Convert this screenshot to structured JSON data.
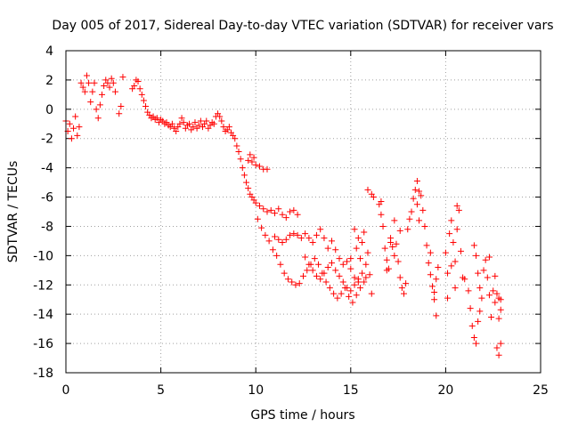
{
  "chart_data": {
    "type": "scatter",
    "title": "Day 005 of 2017, Sidereal Day-to-day VTEC variation (SDTVAR) for receiver vars",
    "xlabel": "GPS time / hours",
    "ylabel": "SDTVAR / TECUs",
    "xlim": [
      0,
      25
    ],
    "ylim": [
      -18,
      4
    ],
    "xticks": [
      0,
      5,
      10,
      15,
      20,
      25
    ],
    "xtick_labels": [
      "0",
      "5",
      "10",
      "15",
      "20",
      "25"
    ],
    "yticks": [
      4,
      2,
      0,
      -2,
      -4,
      -6,
      -8,
      -10,
      -12,
      -14,
      -16,
      -18
    ],
    "ytick_labels": [
      "4",
      "2",
      "0",
      "-2",
      "-4",
      "-6",
      "-8",
      "-10",
      "-12",
      "-14",
      "-16",
      "-18"
    ],
    "grid": true,
    "marker": "+",
    "color": "#ff0000",
    "series": [
      {
        "name": "SDTVAR",
        "points": [
          [
            0.0,
            -0.8
          ],
          [
            0.1,
            -1.5
          ],
          [
            0.2,
            -1.0
          ],
          [
            0.3,
            -2.0
          ],
          [
            0.4,
            -1.3
          ],
          [
            0.5,
            -0.5
          ],
          [
            0.6,
            -1.8
          ],
          [
            0.7,
            -1.2
          ],
          [
            0.8,
            1.8
          ],
          [
            0.9,
            1.5
          ],
          [
            1.0,
            1.2
          ],
          [
            1.1,
            2.3
          ],
          [
            1.2,
            1.8
          ],
          [
            1.3,
            0.5
          ],
          [
            1.4,
            1.2
          ],
          [
            1.5,
            1.8
          ],
          [
            1.6,
            0.0
          ],
          [
            1.7,
            -0.6
          ],
          [
            1.8,
            0.3
          ],
          [
            1.9,
            1.0
          ],
          [
            2.0,
            1.6
          ],
          [
            2.1,
            2.0
          ],
          [
            2.2,
            1.8
          ],
          [
            2.3,
            1.5
          ],
          [
            2.4,
            2.1
          ],
          [
            2.5,
            1.8
          ],
          [
            2.6,
            1.2
          ],
          [
            2.8,
            -0.3
          ],
          [
            2.9,
            0.2
          ],
          [
            3.0,
            2.2
          ],
          [
            3.5,
            1.4
          ],
          [
            3.6,
            1.6
          ],
          [
            3.7,
            2.0
          ],
          [
            3.8,
            1.9
          ],
          [
            3.9,
            1.4
          ],
          [
            4.0,
            1.0
          ],
          [
            4.1,
            0.6
          ],
          [
            4.2,
            0.2
          ],
          [
            4.3,
            -0.2
          ],
          [
            4.4,
            -0.4
          ],
          [
            4.5,
            -0.6
          ],
          [
            4.6,
            -0.5
          ],
          [
            4.7,
            -0.7
          ],
          [
            4.8,
            -0.6
          ],
          [
            4.9,
            -0.9
          ],
          [
            5.0,
            -0.7
          ],
          [
            5.1,
            -0.8
          ],
          [
            5.2,
            -1.0
          ],
          [
            5.3,
            -0.9
          ],
          [
            5.4,
            -1.1
          ],
          [
            5.5,
            -1.2
          ],
          [
            5.6,
            -1.0
          ],
          [
            5.7,
            -1.3
          ],
          [
            5.8,
            -1.5
          ],
          [
            5.9,
            -1.2
          ],
          [
            6.0,
            -1.0
          ],
          [
            6.1,
            -0.6
          ],
          [
            6.2,
            -0.9
          ],
          [
            6.3,
            -1.3
          ],
          [
            6.4,
            -1.1
          ],
          [
            6.5,
            -1.0
          ],
          [
            6.6,
            -1.4
          ],
          [
            6.7,
            -1.2
          ],
          [
            6.8,
            -0.9
          ],
          [
            6.9,
            -1.3
          ],
          [
            7.0,
            -1.1
          ],
          [
            7.1,
            -0.8
          ],
          [
            7.2,
            -1.2
          ],
          [
            7.3,
            -1.0
          ],
          [
            7.4,
            -0.8
          ],
          [
            7.5,
            -1.3
          ],
          [
            7.6,
            -1.1
          ],
          [
            7.7,
            -0.9
          ],
          [
            7.8,
            -1.0
          ],
          [
            7.9,
            -0.5
          ],
          [
            8.0,
            -0.3
          ],
          [
            8.1,
            -0.5
          ],
          [
            8.2,
            -0.8
          ],
          [
            8.3,
            -1.2
          ],
          [
            8.4,
            -1.5
          ],
          [
            8.5,
            -1.4
          ],
          [
            8.6,
            -1.2
          ],
          [
            8.7,
            -1.6
          ],
          [
            8.8,
            -1.8
          ],
          [
            8.9,
            -2.0
          ],
          [
            9.0,
            -2.5
          ],
          [
            9.1,
            -2.9
          ],
          [
            9.2,
            -3.4
          ],
          [
            9.3,
            -4.0
          ],
          [
            9.4,
            -4.5
          ],
          [
            9.5,
            -5.0
          ],
          [
            9.6,
            -3.5
          ],
          [
            9.7,
            -3.1
          ],
          [
            9.8,
            -3.6
          ],
          [
            9.9,
            -3.3
          ],
          [
            10.0,
            -3.8
          ],
          [
            10.2,
            -3.9
          ],
          [
            10.4,
            -4.1
          ],
          [
            10.6,
            -4.1
          ],
          [
            9.6,
            -5.4
          ],
          [
            9.7,
            -5.8
          ],
          [
            9.8,
            -6.0
          ],
          [
            9.9,
            -6.2
          ],
          [
            10.0,
            -6.4
          ],
          [
            10.2,
            -6.6
          ],
          [
            10.4,
            -6.8
          ],
          [
            10.6,
            -7.0
          ],
          [
            10.8,
            -6.9
          ],
          [
            11.0,
            -7.1
          ],
          [
            11.2,
            -6.8
          ],
          [
            11.4,
            -7.2
          ],
          [
            11.6,
            -7.4
          ],
          [
            11.8,
            -7.0
          ],
          [
            12.0,
            -6.9
          ],
          [
            12.2,
            -7.2
          ],
          [
            10.1,
            -7.5
          ],
          [
            10.3,
            -8.1
          ],
          [
            10.5,
            -8.6
          ],
          [
            10.7,
            -9.0
          ],
          [
            10.9,
            -9.6
          ],
          [
            11.1,
            -10.0
          ],
          [
            11.3,
            -10.6
          ],
          [
            11.5,
            -11.2
          ],
          [
            11.7,
            -11.6
          ],
          [
            11.9,
            -11.8
          ],
          [
            12.1,
            -12.0
          ],
          [
            12.3,
            -11.9
          ],
          [
            12.5,
            -11.4
          ],
          [
            12.7,
            -11.0
          ],
          [
            12.9,
            -10.6
          ],
          [
            13.1,
            -10.2
          ],
          [
            13.3,
            -10.6
          ],
          [
            13.5,
            -11.2
          ],
          [
            13.7,
            -11.8
          ],
          [
            13.9,
            -12.2
          ],
          [
            14.1,
            -12.6
          ],
          [
            14.3,
            -12.9
          ],
          [
            14.5,
            -12.6
          ],
          [
            14.7,
            -12.2
          ],
          [
            14.9,
            -12.8
          ],
          [
            15.1,
            -13.2
          ],
          [
            15.3,
            -12.7
          ],
          [
            15.5,
            -12.2
          ],
          [
            15.7,
            -11.8
          ],
          [
            11.0,
            -8.7
          ],
          [
            11.2,
            -8.9
          ],
          [
            11.4,
            -9.1
          ],
          [
            11.6,
            -8.9
          ],
          [
            11.8,
            -8.6
          ],
          [
            12.0,
            -8.5
          ],
          [
            12.2,
            -8.6
          ],
          [
            12.4,
            -8.8
          ],
          [
            12.6,
            -8.5
          ],
          [
            12.8,
            -8.8
          ],
          [
            13.0,
            -9.1
          ],
          [
            13.2,
            -8.6
          ],
          [
            13.4,
            -8.2
          ],
          [
            13.6,
            -8.8
          ],
          [
            13.8,
            -9.5
          ],
          [
            14.0,
            -9.0
          ],
          [
            14.2,
            -9.6
          ],
          [
            14.4,
            -10.2
          ],
          [
            14.6,
            -10.6
          ],
          [
            14.8,
            -10.4
          ],
          [
            15.0,
            -10.9
          ],
          [
            15.2,
            -11.5
          ],
          [
            15.4,
            -11.8
          ],
          [
            12.6,
            -10.1
          ],
          [
            12.8,
            -10.6
          ],
          [
            13.0,
            -11.0
          ],
          [
            13.2,
            -11.4
          ],
          [
            13.4,
            -11.6
          ],
          [
            13.6,
            -11.2
          ],
          [
            13.8,
            -10.8
          ],
          [
            14.0,
            -10.5
          ],
          [
            14.2,
            -11.0
          ],
          [
            14.4,
            -11.4
          ],
          [
            14.6,
            -11.8
          ],
          [
            14.8,
            -12.2
          ],
          [
            15.0,
            -12.4
          ],
          [
            15.2,
            -12.0
          ],
          [
            15.4,
            -11.6
          ],
          [
            15.6,
            -11.2
          ],
          [
            15.8,
            -11.5
          ],
          [
            15.2,
            -8.2
          ],
          [
            15.3,
            -9.5
          ],
          [
            15.4,
            -8.8
          ],
          [
            15.5,
            -10.2
          ],
          [
            15.6,
            -9.1
          ],
          [
            15.7,
            -8.4
          ],
          [
            15.8,
            -10.6
          ],
          [
            15.9,
            -9.8
          ],
          [
            16.0,
            -11.3
          ],
          [
            16.1,
            -12.6
          ],
          [
            15.9,
            -5.5
          ],
          [
            16.1,
            -5.8
          ],
          [
            15.0,
            -10.2
          ],
          [
            16.2,
            -6.0
          ],
          [
            16.5,
            -6.5
          ],
          [
            16.6,
            -7.2
          ],
          [
            16.7,
            -8.0
          ],
          [
            16.8,
            -9.5
          ],
          [
            16.9,
            -10.3
          ],
          [
            17.0,
            -10.9
          ],
          [
            17.1,
            -8.8
          ],
          [
            17.2,
            -9.4
          ],
          [
            17.3,
            -10.0
          ],
          [
            17.4,
            -9.2
          ],
          [
            17.5,
            -10.4
          ],
          [
            17.6,
            -11.5
          ],
          [
            17.7,
            -12.2
          ],
          [
            17.8,
            -12.6
          ],
          [
            17.9,
            -11.9
          ],
          [
            17.6,
            -8.3
          ],
          [
            17.3,
            -7.6
          ],
          [
            17.1,
            -9.1
          ],
          [
            16.6,
            -6.3
          ],
          [
            16.9,
            -11.0
          ],
          [
            18.0,
            -8.2
          ],
          [
            18.1,
            -7.5
          ],
          [
            18.2,
            -7.0
          ],
          [
            18.3,
            -6.1
          ],
          [
            18.4,
            -5.5
          ],
          [
            18.5,
            -6.5
          ],
          [
            18.6,
            -7.6
          ],
          [
            18.7,
            -5.9
          ],
          [
            18.8,
            -6.9
          ],
          [
            18.9,
            -8.0
          ],
          [
            19.0,
            -9.3
          ],
          [
            19.1,
            -10.5
          ],
          [
            19.2,
            -11.3
          ],
          [
            19.3,
            -12.1
          ],
          [
            19.4,
            -13.0
          ],
          [
            19.5,
            -11.6
          ],
          [
            19.6,
            -10.8
          ],
          [
            18.5,
            -4.9
          ],
          [
            18.6,
            -5.6
          ],
          [
            19.2,
            -9.8
          ],
          [
            19.4,
            -12.5
          ],
          [
            19.5,
            -14.1
          ],
          [
            20.0,
            -9.8
          ],
          [
            20.1,
            -11.2
          ],
          [
            20.2,
            -8.5
          ],
          [
            20.3,
            -7.6
          ],
          [
            20.4,
            -9.1
          ],
          [
            20.5,
            -10.4
          ],
          [
            20.6,
            -8.2
          ],
          [
            20.7,
            -6.9
          ],
          [
            20.8,
            -9.7
          ],
          [
            20.9,
            -11.5
          ],
          [
            21.0,
            -11.6
          ],
          [
            20.5,
            -12.2
          ],
          [
            20.3,
            -10.7
          ],
          [
            20.1,
            -12.9
          ],
          [
            20.6,
            -6.6
          ],
          [
            21.2,
            -12.4
          ],
          [
            21.3,
            -13.6
          ],
          [
            21.4,
            -14.8
          ],
          [
            21.5,
            -15.6
          ],
          [
            21.6,
            -16.0
          ],
          [
            21.5,
            -9.3
          ],
          [
            21.6,
            -10.0
          ],
          [
            21.7,
            -11.2
          ],
          [
            21.8,
            -12.2
          ],
          [
            21.9,
            -12.9
          ],
          [
            21.7,
            -14.5
          ],
          [
            21.8,
            -13.8
          ],
          [
            22.0,
            -11.0
          ],
          [
            22.1,
            -10.3
          ],
          [
            22.2,
            -11.5
          ],
          [
            22.3,
            -12.7
          ],
          [
            22.4,
            -14.2
          ],
          [
            22.5,
            -12.4
          ],
          [
            22.6,
            -13.2
          ],
          [
            22.7,
            -12.6
          ],
          [
            22.8,
            -14.3
          ],
          [
            22.9,
            -13.0
          ],
          [
            22.3,
            -10.1
          ],
          [
            22.7,
            -16.3
          ],
          [
            22.8,
            -16.8
          ],
          [
            22.9,
            -16.0
          ],
          [
            22.6,
            -11.4
          ],
          [
            22.8,
            -12.9
          ],
          [
            22.9,
            -13.7
          ]
        ]
      }
    ]
  }
}
